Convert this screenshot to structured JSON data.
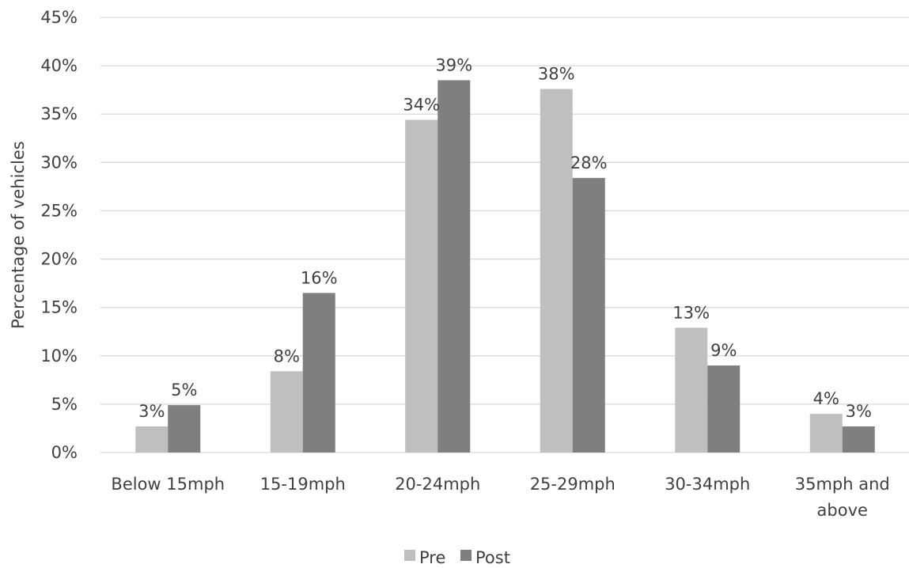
{
  "chart_data": {
    "type": "bar",
    "title": "",
    "xlabel": "",
    "ylabel": "Percentage of vehicles",
    "categories": [
      [
        "Below 15mph"
      ],
      [
        "15-19mph"
      ],
      [
        "20-24mph"
      ],
      [
        "25-29mph"
      ],
      [
        "30-34mph"
      ],
      [
        "35mph and",
        "above"
      ]
    ],
    "series": [
      {
        "name": "Pre",
        "color": "#bfbfbf",
        "values": [
          2.7,
          8.4,
          34.4,
          37.6,
          12.9,
          4.0
        ],
        "labels": [
          "3%",
          "8%",
          "34%",
          "38%",
          "13%",
          "4%"
        ]
      },
      {
        "name": "Post",
        "color": "#7f7f7f",
        "values": [
          4.9,
          16.5,
          38.5,
          28.4,
          9.0,
          2.7
        ],
        "labels": [
          "5%",
          "16%",
          "39%",
          "28%",
          "9%",
          "3%"
        ]
      }
    ],
    "ylim": [
      0,
      45
    ],
    "yticks": [
      "0%",
      "5%",
      "10%",
      "15%",
      "20%",
      "25%",
      "30%",
      "35%",
      "40%",
      "45%"
    ],
    "grid": true,
    "legend_position": "bottom"
  }
}
